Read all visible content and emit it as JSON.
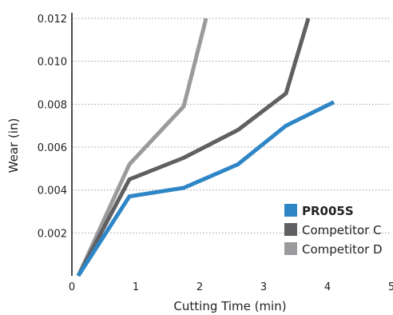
{
  "chart_data": {
    "type": "line",
    "xlabel": "Cutting Time (min)",
    "ylabel": "Wear (in)",
    "xlim": [
      0,
      5
    ],
    "ylim": [
      0,
      0.012
    ],
    "x_ticks": [
      "0",
      "1",
      "2",
      "3",
      "4",
      "5"
    ],
    "y_ticks": [
      "0.002",
      "0.004",
      "0.006",
      "0.008",
      "0.010",
      "0.012"
    ],
    "grid": "horizontal dotted",
    "legend_position": "bottom-right",
    "series": [
      {
        "name": "PR005S",
        "color": "#2f86c6",
        "bold": true,
        "points": [
          [
            0.1,
            0.0
          ],
          [
            0.9,
            0.0037
          ],
          [
            1.75,
            0.0041
          ],
          [
            2.6,
            0.0052
          ],
          [
            3.35,
            0.007
          ],
          [
            4.1,
            0.0081
          ]
        ]
      },
      {
        "name": "Competitor C",
        "color": "#606062",
        "bold": false,
        "points": [
          [
            0.1,
            0.0
          ],
          [
            0.9,
            0.0045
          ],
          [
            1.75,
            0.0055
          ],
          [
            2.6,
            0.0068
          ],
          [
            3.35,
            0.0085
          ],
          [
            3.7,
            0.012
          ]
        ]
      },
      {
        "name": "Competitor D",
        "color": "#9b9b9d",
        "bold": false,
        "points": [
          [
            0.1,
            0.0
          ],
          [
            0.9,
            0.0052
          ],
          [
            1.75,
            0.0079
          ],
          [
            2.1,
            0.012
          ]
        ]
      }
    ]
  }
}
